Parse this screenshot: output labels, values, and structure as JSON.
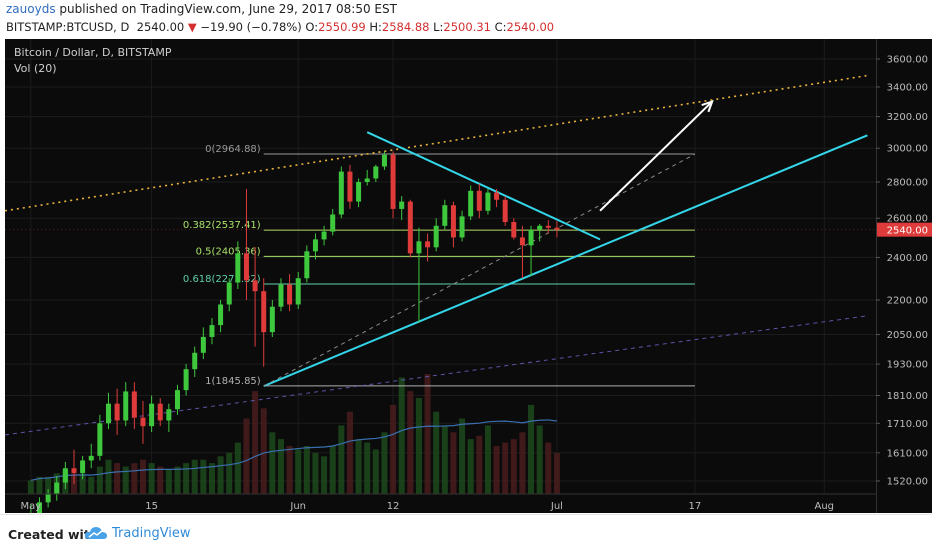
{
  "header": {
    "author": "zauoyds",
    "published_text": "published on TradingView.com, June 29, 2017 08:50 EST",
    "symbol": "BITSTAMP:BTCUSD, D",
    "last": "2540.00",
    "change": "−19.90 (−0.78%)",
    "o_label": "O:",
    "o": "2550.99",
    "h_label": "H:",
    "h": "2584.88",
    "l_label": "L:",
    "l": "2500.31",
    "c_label": "C:",
    "c": "2540.00"
  },
  "footer": {
    "created_with": "Created with",
    "brand": "TradingView"
  },
  "colors": {
    "background": "#0b0b0b",
    "up": "#3ec83e",
    "down": "#e03b3b",
    "trend": "#33d6e8",
    "fib": "#a8e06a",
    "arrow": "#ffffff",
    "resistance": "#e8b43a",
    "price_badge": "#e03b3b"
  },
  "chart_data": {
    "type": "candlestick",
    "title": "Bitcoin / Dollar, D, BITSTAMP",
    "indicator_label": "Vol (20)",
    "x_ticks": [
      "May",
      "15",
      "Jun",
      "12",
      "Jul",
      "17",
      "Aug"
    ],
    "x_tick_days": [
      1,
      15,
      32,
      43,
      62,
      78,
      93
    ],
    "y_ticks": [
      "3600.00",
      "3400.00",
      "3200.00",
      "3000.00",
      "2800.00",
      "2600.00",
      "2400.00",
      "2200.00",
      "2050.00",
      "1930.00",
      "1810.00",
      "1710.00",
      "1610.00",
      "1520.00"
    ],
    "y_tick_values": [
      3600,
      3400,
      3200,
      3000,
      2800,
      2600,
      2400,
      2200,
      2050,
      1930,
      1810,
      1710,
      1610,
      1520
    ],
    "scale": "log",
    "y_range": [
      1480,
      3750
    ],
    "x_range": [
      -2,
      99
    ],
    "last_price_label": "2540.00",
    "candles": [
      {
        "d": 1,
        "o": 1400,
        "h": 1450,
        "l": 1380,
        "c": 1420
      },
      {
        "d": 2,
        "o": 1420,
        "h": 1470,
        "l": 1400,
        "c": 1455
      },
      {
        "d": 3,
        "o": 1455,
        "h": 1495,
        "l": 1440,
        "c": 1480
      },
      {
        "d": 4,
        "o": 1480,
        "h": 1535,
        "l": 1460,
        "c": 1515
      },
      {
        "d": 5,
        "o": 1515,
        "h": 1580,
        "l": 1495,
        "c": 1560
      },
      {
        "d": 6,
        "o": 1560,
        "h": 1620,
        "l": 1510,
        "c": 1545
      },
      {
        "d": 7,
        "o": 1545,
        "h": 1600,
        "l": 1525,
        "c": 1585
      },
      {
        "d": 8,
        "o": 1585,
        "h": 1640,
        "l": 1560,
        "c": 1600
      },
      {
        "d": 9,
        "o": 1600,
        "h": 1740,
        "l": 1585,
        "c": 1710
      },
      {
        "d": 10,
        "o": 1710,
        "h": 1820,
        "l": 1690,
        "c": 1780
      },
      {
        "d": 11,
        "o": 1780,
        "h": 1835,
        "l": 1670,
        "c": 1720
      },
      {
        "d": 12,
        "o": 1720,
        "h": 1860,
        "l": 1700,
        "c": 1825
      },
      {
        "d": 13,
        "o": 1825,
        "h": 1860,
        "l": 1690,
        "c": 1730
      },
      {
        "d": 14,
        "o": 1730,
        "h": 1790,
        "l": 1640,
        "c": 1700
      },
      {
        "d": 15,
        "o": 1700,
        "h": 1810,
        "l": 1680,
        "c": 1780
      },
      {
        "d": 16,
        "o": 1780,
        "h": 1800,
        "l": 1700,
        "c": 1720
      },
      {
        "d": 17,
        "o": 1720,
        "h": 1780,
        "l": 1680,
        "c": 1760
      },
      {
        "d": 18,
        "o": 1760,
        "h": 1850,
        "l": 1740,
        "c": 1830
      },
      {
        "d": 19,
        "o": 1830,
        "h": 1930,
        "l": 1810,
        "c": 1910
      },
      {
        "d": 20,
        "o": 1910,
        "h": 2000,
        "l": 1880,
        "c": 1975
      },
      {
        "d": 21,
        "o": 1975,
        "h": 2080,
        "l": 1950,
        "c": 2040
      },
      {
        "d": 22,
        "o": 2040,
        "h": 2120,
        "l": 2010,
        "c": 2090
      },
      {
        "d": 23,
        "o": 2090,
        "h": 2200,
        "l": 2060,
        "c": 2180
      },
      {
        "d": 24,
        "o": 2180,
        "h": 2300,
        "l": 2150,
        "c": 2280
      },
      {
        "d": 25,
        "o": 2280,
        "h": 2480,
        "l": 2250,
        "c": 2420
      },
      {
        "d": 26,
        "o": 2420,
        "h": 2760,
        "l": 2200,
        "c": 2290
      },
      {
        "d": 27,
        "o": 2290,
        "h": 2450,
        "l": 2000,
        "c": 2240
      },
      {
        "d": 28,
        "o": 2240,
        "h": 2300,
        "l": 1920,
        "c": 2060
      },
      {
        "d": 29,
        "o": 2060,
        "h": 2200,
        "l": 2040,
        "c": 2170
      },
      {
        "d": 30,
        "o": 2170,
        "h": 2300,
        "l": 2150,
        "c": 2270
      },
      {
        "d": 31,
        "o": 2270,
        "h": 2320,
        "l": 2150,
        "c": 2180
      },
      {
        "d": 32,
        "o": 2180,
        "h": 2330,
        "l": 2160,
        "c": 2300
      },
      {
        "d": 33,
        "o": 2300,
        "h": 2460,
        "l": 2280,
        "c": 2430
      },
      {
        "d": 34,
        "o": 2430,
        "h": 2520,
        "l": 2390,
        "c": 2490
      },
      {
        "d": 35,
        "o": 2490,
        "h": 2560,
        "l": 2460,
        "c": 2530
      },
      {
        "d": 36,
        "o": 2530,
        "h": 2650,
        "l": 2510,
        "c": 2620
      },
      {
        "d": 37,
        "o": 2620,
        "h": 2890,
        "l": 2600,
        "c": 2860
      },
      {
        "d": 38,
        "o": 2860,
        "h": 2900,
        "l": 2650,
        "c": 2690
      },
      {
        "d": 39,
        "o": 2690,
        "h": 2820,
        "l": 2660,
        "c": 2800
      },
      {
        "d": 40,
        "o": 2800,
        "h": 2870,
        "l": 2780,
        "c": 2820
      },
      {
        "d": 41,
        "o": 2820,
        "h": 2900,
        "l": 2800,
        "c": 2890
      },
      {
        "d": 42,
        "o": 2890,
        "h": 2980,
        "l": 2870,
        "c": 2960
      },
      {
        "d": 43,
        "o": 2960,
        "h": 2980,
        "l": 2600,
        "c": 2650
      },
      {
        "d": 44,
        "o": 2650,
        "h": 2720,
        "l": 2590,
        "c": 2690
      },
      {
        "d": 45,
        "o": 2690,
        "h": 2700,
        "l": 2400,
        "c": 2420
      },
      {
        "d": 46,
        "o": 2420,
        "h": 2550,
        "l": 2100,
        "c": 2480
      },
      {
        "d": 47,
        "o": 2480,
        "h": 2520,
        "l": 2380,
        "c": 2450
      },
      {
        "d": 48,
        "o": 2450,
        "h": 2600,
        "l": 2430,
        "c": 2560
      },
      {
        "d": 49,
        "o": 2560,
        "h": 2700,
        "l": 2540,
        "c": 2670
      },
      {
        "d": 50,
        "o": 2670,
        "h": 2690,
        "l": 2450,
        "c": 2500
      },
      {
        "d": 51,
        "o": 2500,
        "h": 2640,
        "l": 2480,
        "c": 2610
      },
      {
        "d": 52,
        "o": 2610,
        "h": 2780,
        "l": 2590,
        "c": 2750
      },
      {
        "d": 53,
        "o": 2750,
        "h": 2790,
        "l": 2600,
        "c": 2640
      },
      {
        "d": 54,
        "o": 2640,
        "h": 2760,
        "l": 2620,
        "c": 2740
      },
      {
        "d": 55,
        "o": 2740,
        "h": 2760,
        "l": 2660,
        "c": 2700
      },
      {
        "d": 56,
        "o": 2700,
        "h": 2720,
        "l": 2560,
        "c": 2580
      },
      {
        "d": 57,
        "o": 2580,
        "h": 2600,
        "l": 2490,
        "c": 2500
      },
      {
        "d": 58,
        "o": 2500,
        "h": 2560,
        "l": 2300,
        "c": 2460
      },
      {
        "d": 59,
        "o": 2460,
        "h": 2560,
        "l": 2310,
        "c": 2540
      },
      {
        "d": 60,
        "o": 2540,
        "h": 2570,
        "l": 2480,
        "c": 2560
      },
      {
        "d": 61,
        "o": 2560,
        "h": 2590,
        "l": 2520,
        "c": 2550
      },
      {
        "d": 62,
        "o": 2550,
        "h": 2585,
        "l": 2500,
        "c": 2540
      }
    ],
    "volume": [
      4,
      5,
      5,
      6,
      7,
      6,
      6,
      5,
      8,
      10,
      9,
      8,
      9,
      10,
      9,
      8,
      7,
      8,
      9,
      10,
      10,
      9,
      11,
      12,
      15,
      22,
      30,
      25,
      18,
      16,
      14,
      13,
      14,
      12,
      11,
      14,
      20,
      24,
      16,
      15,
      13,
      18,
      26,
      34,
      30,
      28,
      35,
      24,
      20,
      18,
      22,
      16,
      17,
      20,
      14,
      15,
      16,
      18,
      26,
      20,
      15,
      12
    ],
    "fib_levels": [
      {
        "label": "0(2964.88)",
        "value": 2964.88
      },
      {
        "label": "0.382(2537.41)",
        "value": 2537.41
      },
      {
        "label": "0.5(2405.36)",
        "value": 2405.36
      },
      {
        "label": "0.618(2273.32)",
        "value": 2273.32
      },
      {
        "label": "1(1845.85)",
        "value": 1845.85
      }
    ],
    "fib_range_days": [
      28,
      78
    ],
    "trendlines": [
      {
        "kind": "resistance-dotted",
        "d1": -2,
        "p1": 2640,
        "d2": 98,
        "p2": 3480
      },
      {
        "kind": "support",
        "d1": 28,
        "p1": 1845,
        "d2": 98,
        "p2": 3080
      },
      {
        "kind": "upper-triangle",
        "d1": 40,
        "p1": 3100,
        "d2": 67,
        "p2": 2490
      },
      {
        "kind": "dashed-diagonal",
        "d1": 28,
        "p1": 1845,
        "d2": 78,
        "p2": 2964
      },
      {
        "kind": "dashed-purple",
        "d1": -2,
        "p1": 1670,
        "d2": 98,
        "p2": 2130
      }
    ],
    "arrow": {
      "d1": 67,
      "p1": 2640,
      "d2": 80,
      "p2": 3300
    }
  }
}
